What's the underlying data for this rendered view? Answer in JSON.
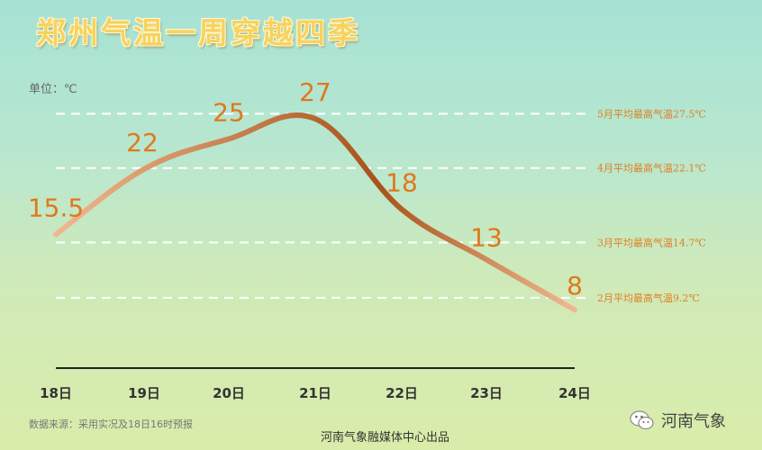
{
  "title": "郑州气温一周穿越四季",
  "unit_label": "单位：℃",
  "footer": {
    "source_note": "数据来源：采用实况及18日16时预报",
    "credit": "河南气象融媒体中心出品",
    "brand_name": "河南气象",
    "brand_icon": "wechat-icon"
  },
  "colors": {
    "title": "#f6d35e",
    "value_label": "#e0781c",
    "reference_label": "#e07f22",
    "line_light": "#f0b890",
    "line_dark": "#a8531a",
    "axis": "#222222"
  },
  "chart_data": {
    "type": "line",
    "title": "郑州气温一周穿越四季",
    "ylabel": "单位：℃",
    "categories": [
      "18日",
      "19日",
      "20日",
      "21日",
      "22日",
      "23日",
      "24日"
    ],
    "values": [
      15.5,
      22,
      25,
      27,
      18,
      13,
      8
    ],
    "value_labels": [
      "15.5",
      "22",
      "25",
      "27",
      "18",
      "13",
      "8"
    ],
    "ylim": [
      0,
      30
    ],
    "grid": false,
    "reference_lines": [
      {
        "value": 27.5,
        "label": "5月平均最高气温27.5℃"
      },
      {
        "value": 22.1,
        "label": "4月平均最高气温22.1℃"
      },
      {
        "value": 14.7,
        "label": "3月平均最高气温14.7℃"
      },
      {
        "value": 9.2,
        "label": "2月平均最高气温9.2℃"
      }
    ]
  }
}
